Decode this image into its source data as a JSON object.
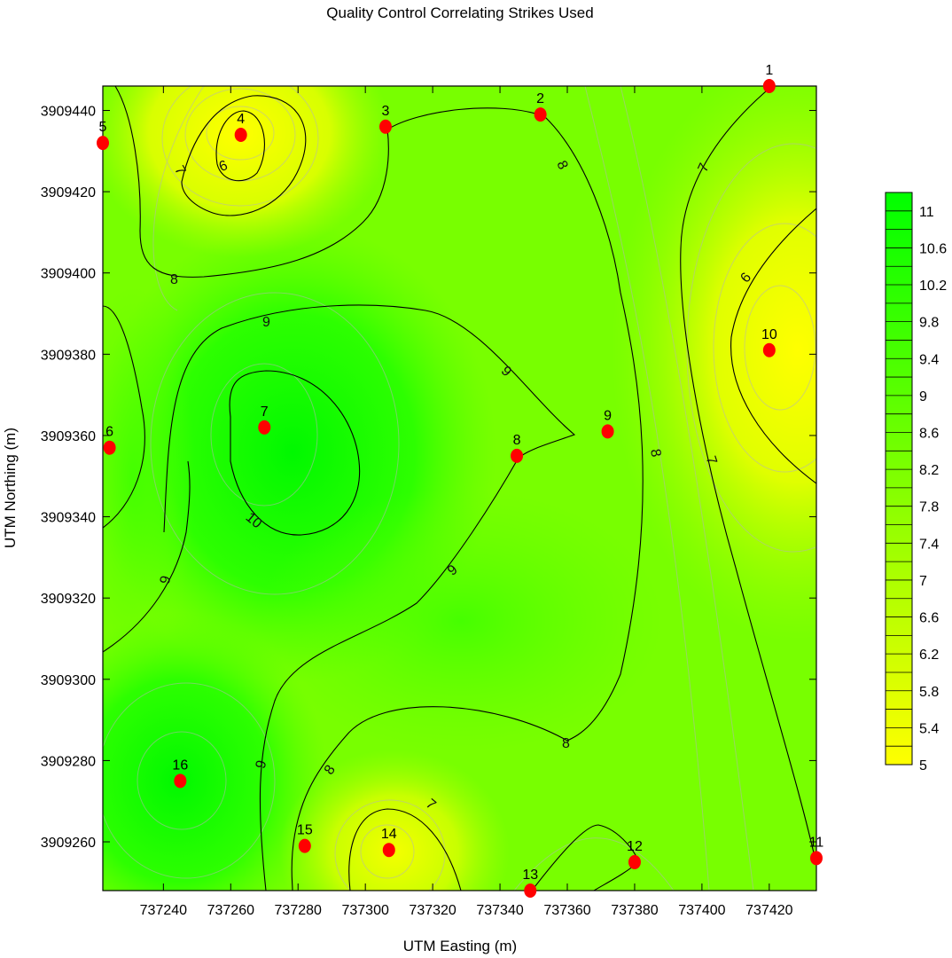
{
  "chart_data": {
    "type": "heatmap",
    "subtype": "filled contour map",
    "title": "Quality Control Correlating Strikes Used",
    "xlabel": "UTM Easting (m)",
    "ylabel": "UTM Northing (m)",
    "xlim": [
      737222,
      737434
    ],
    "ylim": [
      3909248,
      3909446
    ],
    "x_ticks": [
      737240,
      737260,
      737280,
      737300,
      737320,
      737340,
      737360,
      737380,
      737400,
      737420
    ],
    "x_tick_labels": [
      "737240",
      "737260",
      "737280",
      "737300",
      "737320",
      "737340",
      "737360",
      "737380",
      "737400",
      "737420"
    ],
    "y_ticks": [
      3909260,
      3909280,
      3909300,
      3909320,
      3909340,
      3909360,
      3909380,
      3909400,
      3909420,
      3909440
    ],
    "y_tick_labels": [
      "3909260",
      "3909280",
      "3909300",
      "3909320",
      "3909340",
      "3909360",
      "3909380",
      "3909400",
      "3909420",
      "3909440"
    ],
    "colorbar": {
      "min": 5,
      "max": 11.2,
      "step": 0.2,
      "labels": [
        "11",
        "10.6",
        "10.2",
        "9.8",
        "9.4",
        "9",
        "8.6",
        "8.2",
        "7.8",
        "7.4",
        "7",
        "6.6",
        "6.2",
        "5.8",
        "5.4",
        "5"
      ],
      "color_low": "#ffff00",
      "color_mid": "#80ff00",
      "color_high": "#00ff00"
    },
    "contour_labels": [
      "6",
      "7",
      "8",
      "9",
      "10"
    ],
    "stations": [
      {
        "id": "1",
        "x": 737420,
        "y": 3909446
      },
      {
        "id": "2",
        "x": 737352,
        "y": 3909439
      },
      {
        "id": "3",
        "x": 737306,
        "y": 3909436
      },
      {
        "id": "4",
        "x": 737263,
        "y": 3909434
      },
      {
        "id": "5",
        "x": 737222,
        "y": 3909432
      },
      {
        "id": "6",
        "x": 737224,
        "y": 3909357
      },
      {
        "id": "7",
        "x": 737270,
        "y": 3909362
      },
      {
        "id": "8",
        "x": 737345,
        "y": 3909355
      },
      {
        "id": "9",
        "x": 737372,
        "y": 3909361
      },
      {
        "id": "10",
        "x": 737420,
        "y": 3909381
      },
      {
        "id": "11",
        "x": 737434,
        "y": 3909256
      },
      {
        "id": "12",
        "x": 737380,
        "y": 3909255
      },
      {
        "id": "13",
        "x": 737349,
        "y": 3909248
      },
      {
        "id": "14",
        "x": 737307,
        "y": 3909258
      },
      {
        "id": "15",
        "x": 737282,
        "y": 3909259
      },
      {
        "id": "16",
        "x": 737245,
        "y": 3909275
      }
    ],
    "field_centers": [
      {
        "x": 737263,
        "y": 3909434,
        "value": 5.3
      },
      {
        "x": 737420,
        "y": 3909381,
        "value": 5.0
      },
      {
        "x": 737307,
        "y": 3909258,
        "value": 6.0
      },
      {
        "x": 737283,
        "y": 3909358,
        "value": 10.9
      },
      {
        "x": 737245,
        "y": 3909275,
        "value": 10.4
      },
      {
        "x": 737222,
        "y": 3909360,
        "value": 8.1
      },
      {
        "x": 737355,
        "y": 3909315,
        "value": 8.9
      }
    ],
    "field_base": 8.2,
    "point_color": "#ff0000",
    "contour_color": "#000000"
  }
}
